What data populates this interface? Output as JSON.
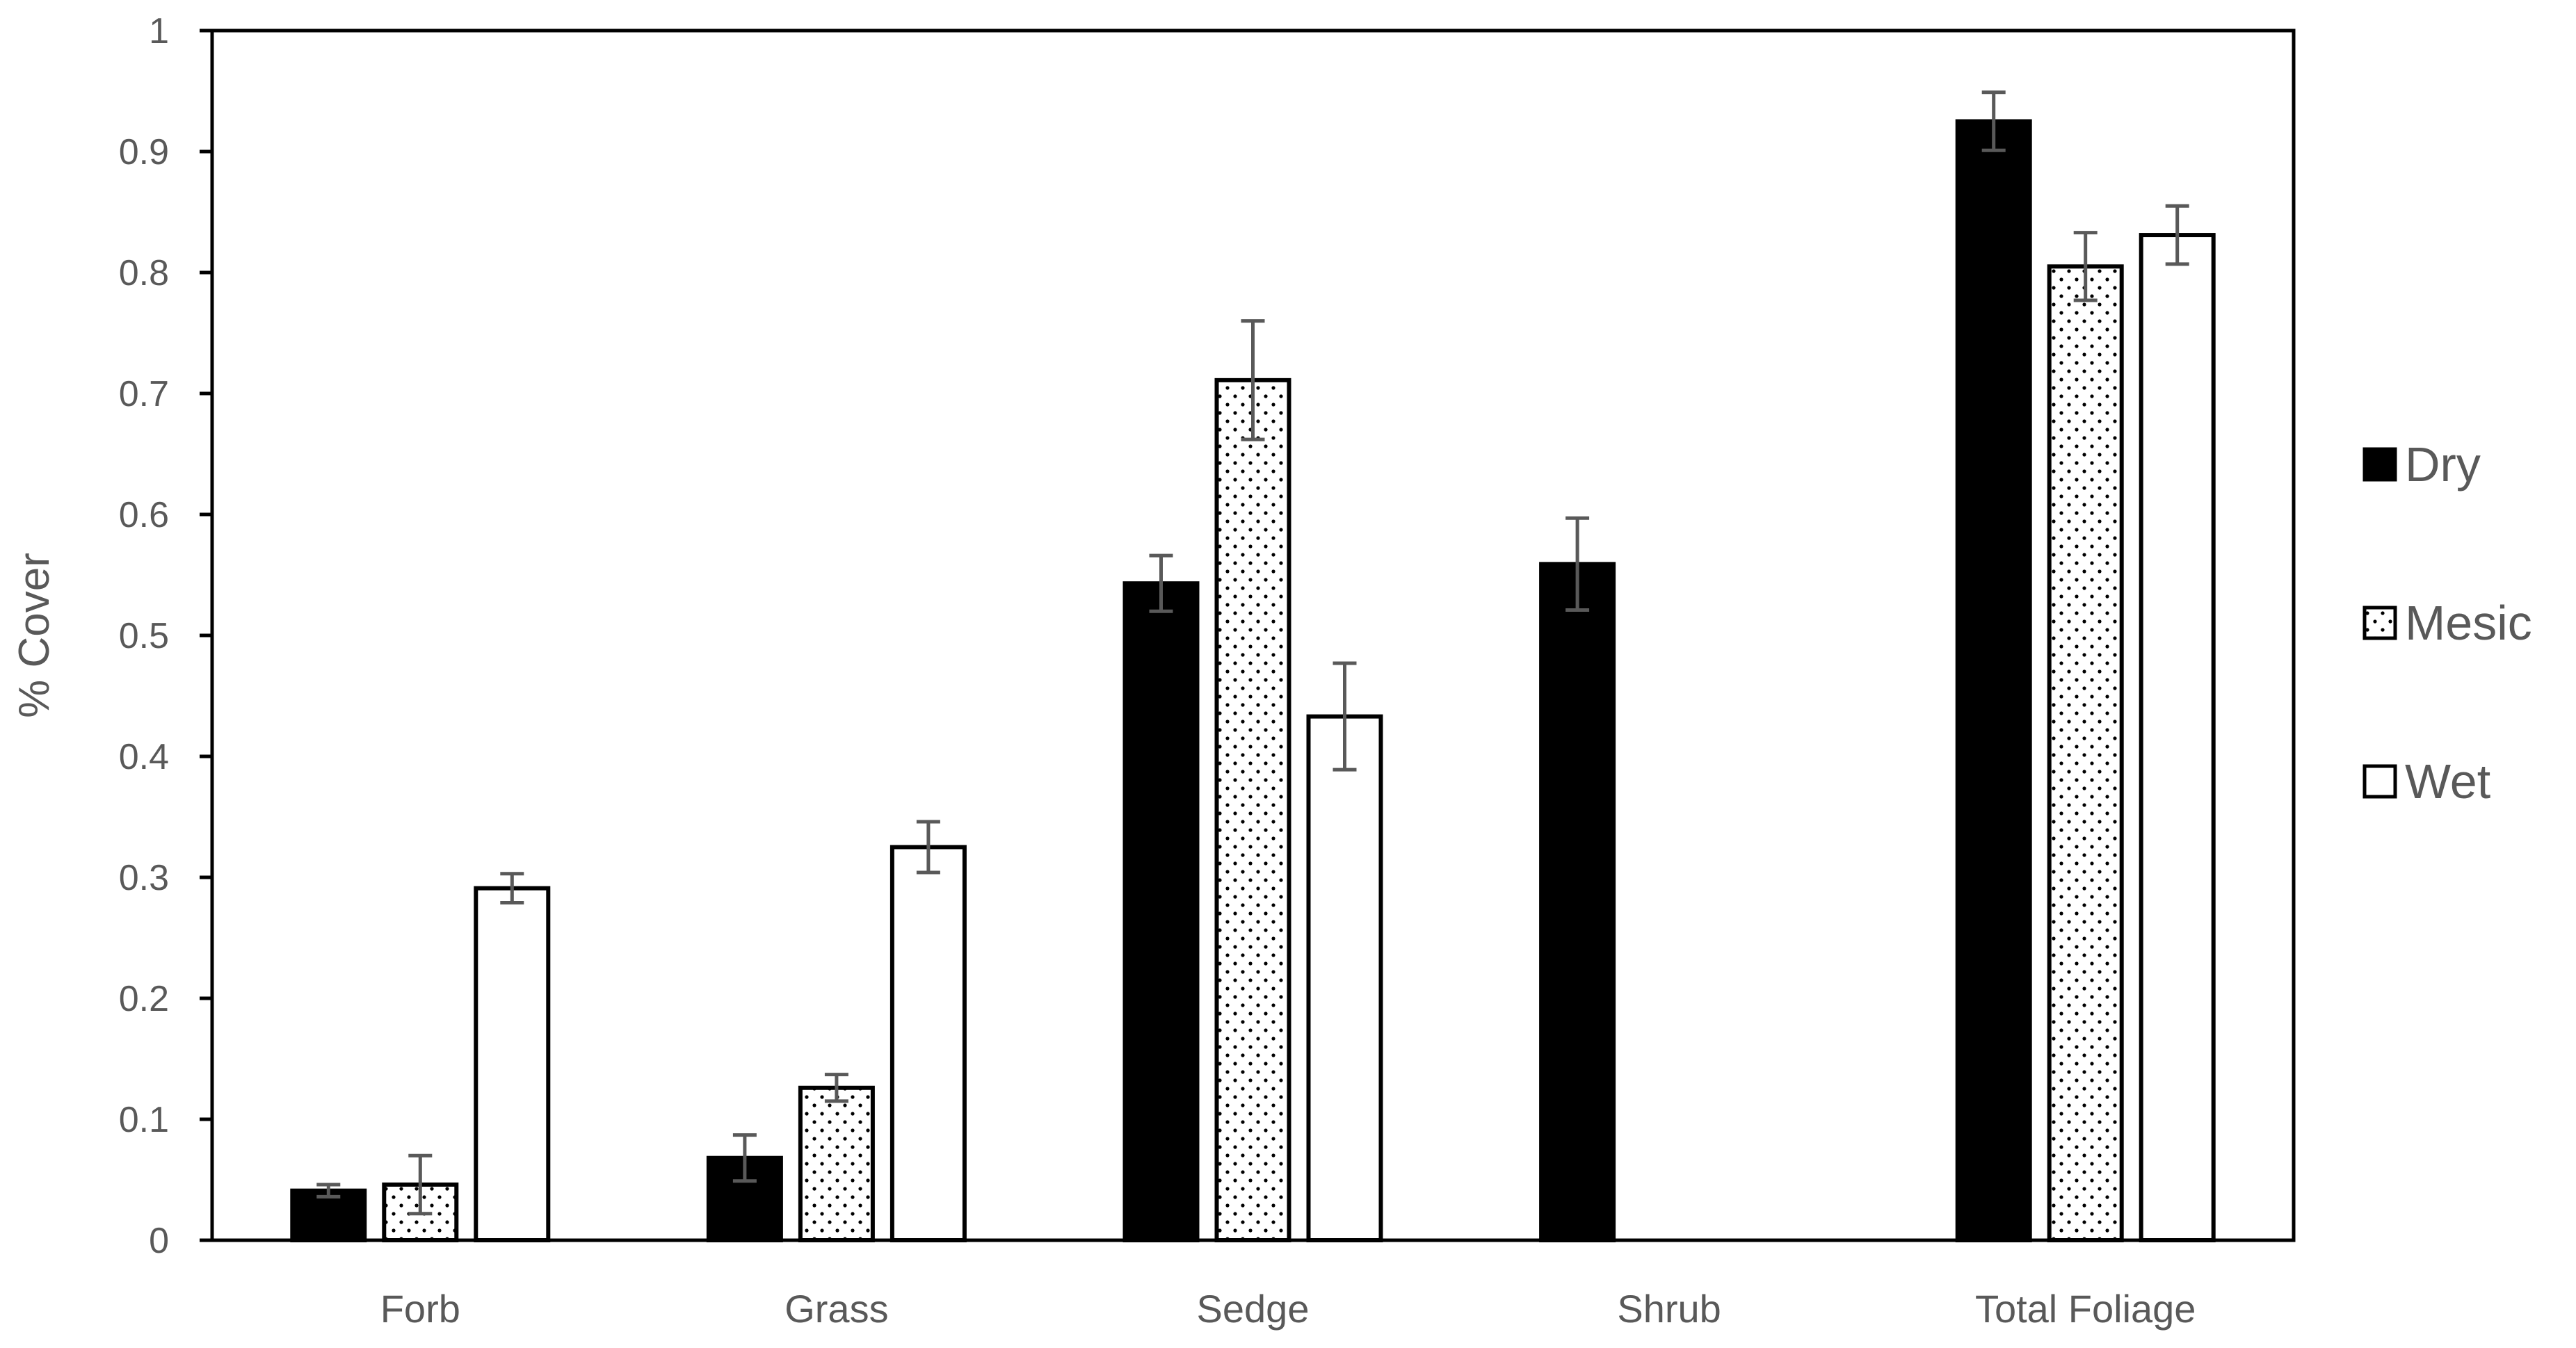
{
  "chart_data": {
    "type": "bar",
    "title": "",
    "xlabel": "",
    "ylabel": "% Cover",
    "ylim": [
      0,
      1
    ],
    "yticks": [
      0,
      0.1,
      0.2,
      0.3,
      0.4,
      0.5,
      0.6,
      0.7,
      0.8,
      0.9,
      1
    ],
    "ytick_labels": [
      "0",
      "0.1",
      "0.2",
      "0.3",
      "0.4",
      "0.5",
      "0.6",
      "0.7",
      "0.8",
      "0.9",
      "1"
    ],
    "categories": [
      "Forb",
      "Grass",
      "Sedge",
      "Shrub",
      "Total Foliage"
    ],
    "grid": false,
    "legend_position": "right",
    "series": [
      {
        "name": "Dry",
        "fill": "solid-black",
        "values": [
          0.041,
          0.068,
          0.543,
          0.559,
          0.925
        ],
        "errors": [
          0.005,
          0.019,
          0.023,
          0.038,
          0.024
        ]
      },
      {
        "name": "Mesic",
        "fill": "dotted",
        "values": [
          0.046,
          0.126,
          0.711,
          null,
          0.805
        ],
        "errors": [
          0.024,
          0.011,
          0.049,
          null,
          0.028
        ]
      },
      {
        "name": "Wet",
        "fill": "white",
        "values": [
          0.291,
          0.325,
          0.433,
          null,
          0.831
        ],
        "errors": [
          0.012,
          0.021,
          0.044,
          null,
          0.024
        ]
      }
    ],
    "colors": {
      "bar_outline": "#000000",
      "dry": "#000000",
      "wet": "#ffffff",
      "error_bar": "#595959",
      "text": "#595959"
    }
  }
}
